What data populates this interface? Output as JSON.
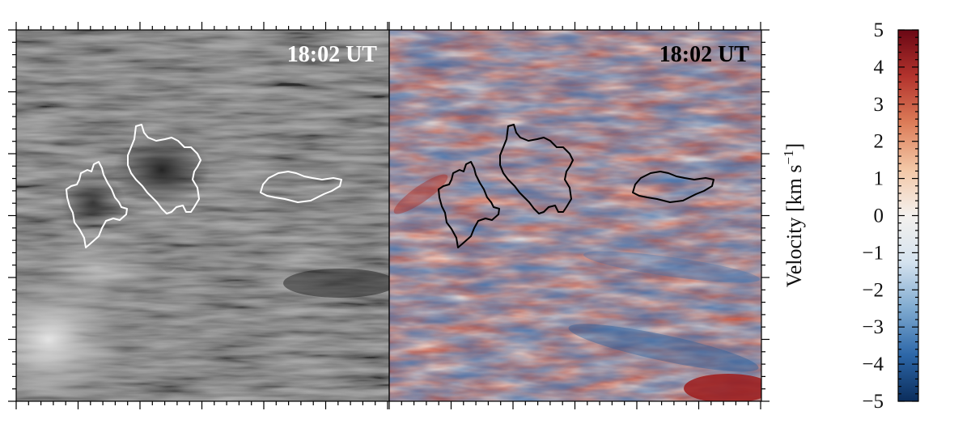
{
  "panels": [
    {
      "kind": "intensity",
      "timestamp": "18:02 UT",
      "timestamp_color": "#ffffff",
      "contour_color": "#ffffff"
    },
    {
      "kind": "velocity",
      "timestamp": "18:02 UT",
      "timestamp_color": "#000000",
      "contour_color": "#000000"
    }
  ],
  "colorbar": {
    "label": "Velocity [km s",
    "label_sup": "−1",
    "label_close": "]",
    "min": -5,
    "max": 5,
    "ticks": [
      "5",
      "4",
      "3",
      "2",
      "1",
      "0",
      "−1",
      "−2",
      "−3",
      "−4",
      "−5"
    ],
    "tick_values": [
      5,
      4,
      3,
      2,
      1,
      0,
      -1,
      -2,
      -3,
      -4,
      -5
    ],
    "colormap": [
      "#0b2d5c",
      "#2d67a8",
      "#7faad0",
      "#d5e3ef",
      "#f4f1ee",
      "#f3c7a6",
      "#dc7c58",
      "#b3332d",
      "#6a0714"
    ]
  },
  "chart_data": {
    "type": "heatmap",
    "title": "",
    "panels": [
      "intensity image",
      "Doppler velocity map"
    ],
    "annotations": [
      "18:02 UT",
      "18:02 UT"
    ],
    "colorbar": {
      "label": "Velocity [km s−1]",
      "range": [
        -5,
        5
      ],
      "ticks": [
        5,
        4,
        3,
        2,
        1,
        0,
        -1,
        -2,
        -3,
        -4,
        -5
      ],
      "colormap": "red (positive) – white (0) – blue (negative)"
    },
    "contours": 3,
    "grid": false
  }
}
